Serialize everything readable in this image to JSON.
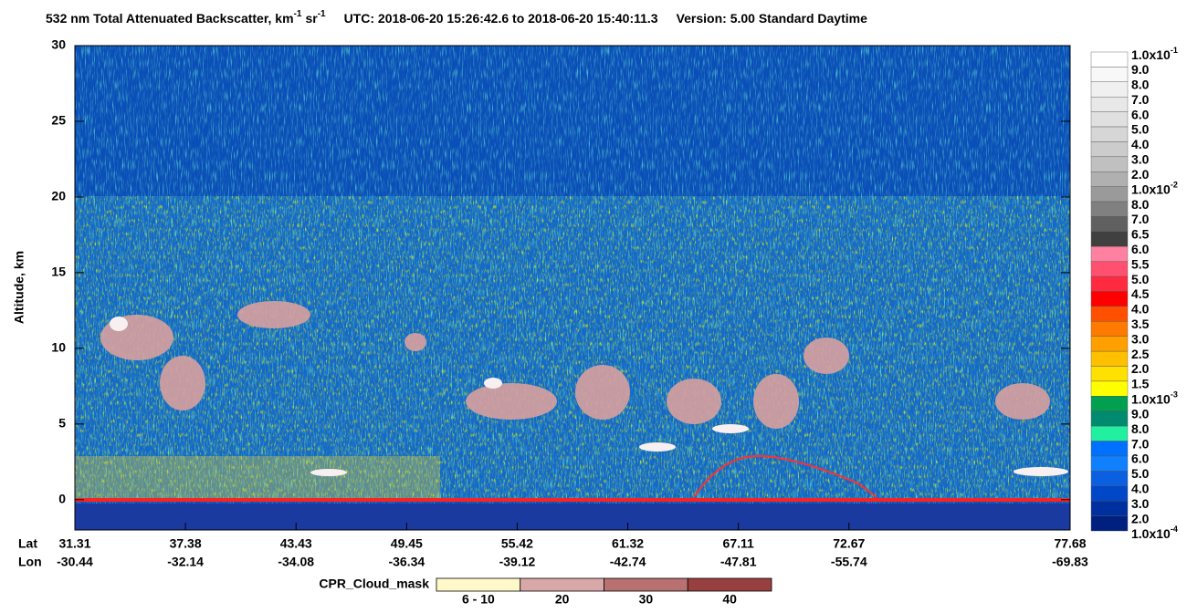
{
  "chart_data": {
    "type": "curtain",
    "title": {
      "main": "532 nm Total Attenuated Backscatter, km",
      "exp1": "-1",
      "unit2": "sr",
      "exp2": "-1",
      "utc": "UTC:  2018-06-20 15:26:42.6  to  2018-06-20 15:40:11.3",
      "version": "Version: 5.00  Standard  Daytime"
    },
    "ylabel": "Altitude, km",
    "ylim": [
      -2,
      30
    ],
    "yticks": [
      0,
      5,
      10,
      15,
      20,
      25,
      30
    ],
    "x_rows": {
      "lat_label": "Lat",
      "lon_label": "Lon",
      "lat": [
        31.31,
        37.38,
        43.43,
        49.45,
        55.42,
        61.32,
        67.11,
        72.67,
        77.68
      ],
      "lon": [
        -30.44,
        -32.14,
        -34.08,
        -36.34,
        -39.12,
        -42.74,
        -47.81,
        -55.74,
        -69.83
      ]
    },
    "colorbar": {
      "levels": [
        {
          "label": "1.0x10",
          "exp": "-1"
        },
        "9.0",
        "8.0",
        "7.0",
        "6.0",
        "5.0",
        "4.0",
        "3.0",
        "2.0",
        {
          "label": "1.0x10",
          "exp": "-2"
        },
        "8.0",
        "7.0",
        "6.5",
        "6.0",
        "5.5",
        "5.0",
        "4.5",
        "4.0",
        "3.5",
        "3.0",
        "2.5",
        "2.0",
        "1.5",
        {
          "label": "1.0x10",
          "exp": "-3"
        },
        "9.0",
        "8.0",
        "7.0",
        "6.0",
        "5.0",
        "4.0",
        "3.0",
        "2.0",
        {
          "label": "1.0x10",
          "exp": "-4"
        }
      ],
      "colors": [
        "#ffffff",
        "#f8f8f8",
        "#f0f0f0",
        "#e8e8e8",
        "#e0e0e0",
        "#d6d6d6",
        "#cccccc",
        "#c0c0c0",
        "#b0b0b0",
        "#9a9a9a",
        "#808080",
        "#606060",
        "#404040",
        "#ff80a0",
        "#ff5070",
        "#ff2a40",
        "#ff0000",
        "#ff5000",
        "#ff7a00",
        "#ffa000",
        "#ffc000",
        "#ffe000",
        "#ffff00",
        "#00a050",
        "#008a70",
        "#20f0a0",
        "#0070ff",
        "#1080ff",
        "#0a60e0",
        "#0048c8",
        "#0030a0",
        "#002080"
      ]
    },
    "cpr_legend": {
      "label": "CPR_Cloud_mask",
      "bins": [
        "6 - 10",
        "20",
        "30",
        "40"
      ],
      "colors": [
        "#fff8c8",
        "#d8a8a8",
        "#b87070",
        "#984040"
      ]
    }
  }
}
